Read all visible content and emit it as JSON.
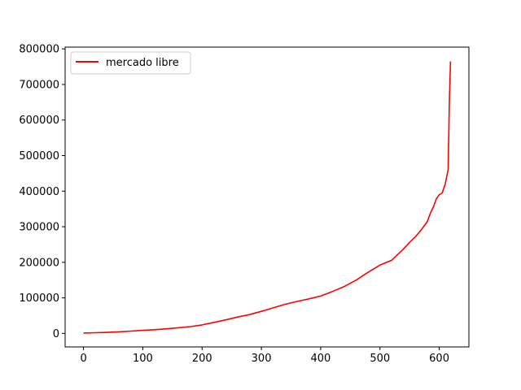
{
  "chart_data": {
    "type": "line",
    "title": "",
    "xlabel": "",
    "ylabel": "",
    "xlim": [
      -31,
      650
    ],
    "ylim": [
      -38000,
      805000
    ],
    "x_ticks": [
      0,
      100,
      200,
      300,
      400,
      500,
      600
    ],
    "x_tick_labels": [
      "0",
      "100",
      "200",
      "300",
      "400",
      "500",
      "600"
    ],
    "y_ticks": [
      0,
      100000,
      200000,
      300000,
      400000,
      500000,
      600000,
      700000,
      800000
    ],
    "y_tick_labels": [
      "0",
      "100000",
      "200000",
      "300000",
      "400000",
      "500000",
      "600000",
      "700000",
      "800000"
    ],
    "grid": false,
    "legend": {
      "position": "top-left"
    },
    "series": [
      {
        "name": "mercado libre",
        "color": "#ff0000",
        "x": [
          0,
          20,
          40,
          60,
          80,
          100,
          120,
          140,
          160,
          180,
          200,
          220,
          240,
          260,
          280,
          300,
          320,
          340,
          360,
          380,
          400,
          420,
          440,
          460,
          480,
          500,
          520,
          530,
          540,
          550,
          560,
          570,
          580,
          585,
          590,
          595,
          600,
          605,
          610,
          615,
          617,
          619
        ],
        "y": [
          1000,
          2000,
          3000,
          4500,
          6500,
          8500,
          10500,
          13000,
          16000,
          19000,
          24000,
          31000,
          38000,
          46000,
          53000,
          62000,
          72000,
          82000,
          90000,
          97000,
          105000,
          118000,
          132000,
          150000,
          172000,
          192000,
          206000,
          222000,
          238000,
          256000,
          272000,
          292000,
          315000,
          338000,
          355000,
          378000,
          390000,
          395000,
          420000,
          460000,
          650000,
          765000
        ]
      }
    ]
  }
}
